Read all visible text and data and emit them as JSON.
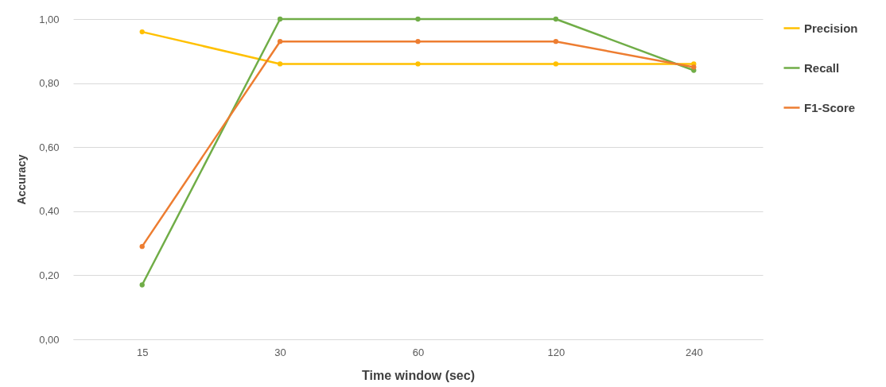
{
  "chart_data": {
    "type": "line",
    "xlabel": "Time window (sec)",
    "ylabel": "Accuracy",
    "categories": [
      "15",
      "30",
      "60",
      "120",
      "240"
    ],
    "series": [
      {
        "name": "Precision",
        "color": "#ffc000",
        "values": [
          0.96,
          0.86,
          0.86,
          0.86,
          0.86
        ]
      },
      {
        "name": "Recall",
        "color": "#70ad47",
        "values": [
          0.17,
          1.0,
          1.0,
          1.0,
          0.84
        ]
      },
      {
        "name": "F1-Score",
        "color": "#ed7d31",
        "values": [
          0.29,
          0.93,
          0.93,
          0.93,
          0.85
        ]
      }
    ],
    "ylim": [
      0,
      1
    ],
    "yticks": [
      {
        "value": 0,
        "label": "0,00"
      },
      {
        "value": 0.2,
        "label": "0,20"
      },
      {
        "value": 0.4,
        "label": "0,40"
      },
      {
        "value": 0.6,
        "label": "0,60"
      },
      {
        "value": 0.8,
        "label": "0,80"
      },
      {
        "value": 1,
        "label": "1,00"
      }
    ],
    "grid": "y",
    "legend": "right",
    "marker": "circle"
  }
}
